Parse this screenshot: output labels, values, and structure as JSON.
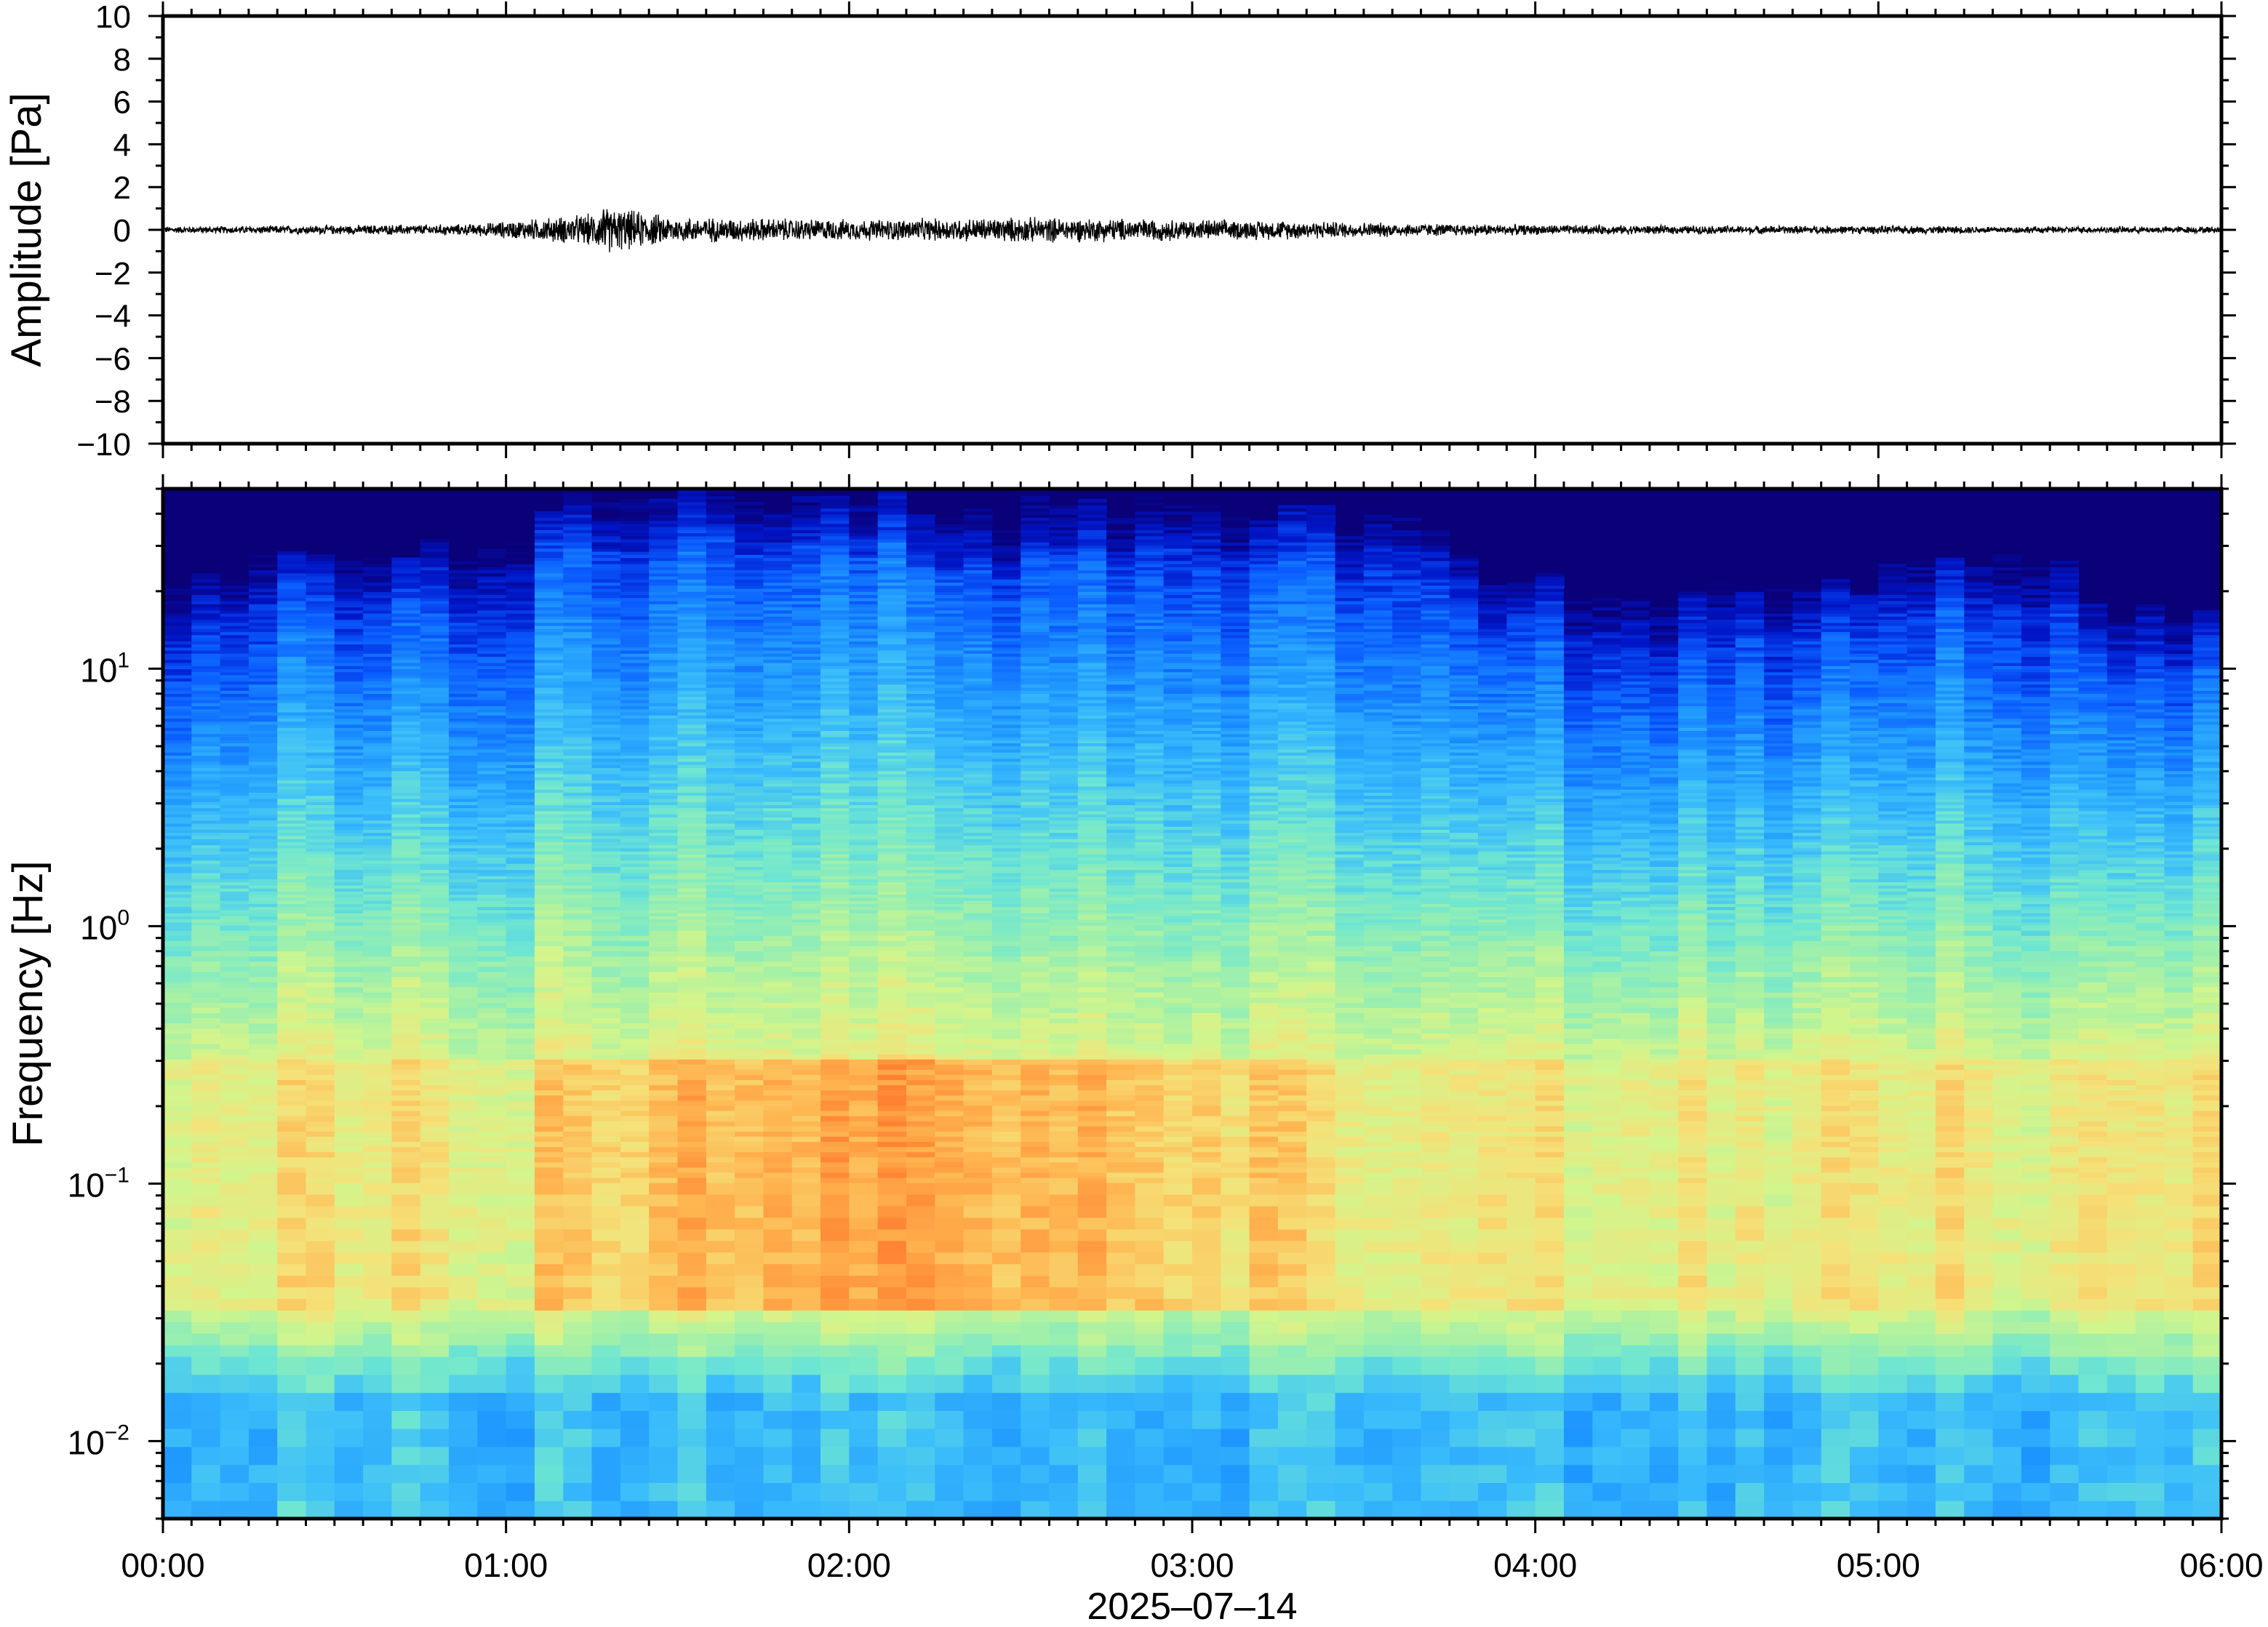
{
  "chart_data": [
    {
      "type": "line",
      "panel": "waveform",
      "ylabel": "Amplitude [Pa]",
      "xlabel": "2025–07–14",
      "ylim": [
        -10,
        10
      ],
      "xlim_hours": [
        0,
        6
      ],
      "x_ticks": [
        "00:00",
        "01:00",
        "02:00",
        "03:00",
        "04:00",
        "05:00",
        "06:00"
      ],
      "y_ticks": [
        "10",
        "8",
        "6",
        "4",
        "2",
        "0",
        "−2",
        "−4",
        "−6",
        "−8",
        "−10"
      ],
      "y_tick_values": [
        10,
        8,
        6,
        4,
        2,
        0,
        -2,
        -4,
        -6,
        -8,
        -10
      ],
      "line_color": "#000000",
      "envelope": {
        "x_hours": [
          0,
          0.5,
          0.9,
          1.1,
          1.25,
          1.3,
          1.5,
          1.8,
          2.0,
          2.3,
          2.5,
          2.8,
          3.0,
          3.3,
          3.6,
          4.0,
          4.5,
          5.0,
          5.5,
          6.0
        ],
        "amplitude": [
          0.15,
          0.2,
          0.25,
          0.5,
          0.7,
          1.0,
          0.55,
          0.5,
          0.45,
          0.5,
          0.55,
          0.5,
          0.45,
          0.4,
          0.3,
          0.22,
          0.18,
          0.18,
          0.15,
          0.15
        ]
      }
    },
    {
      "type": "heatmap",
      "panel": "spectrogram",
      "ylabel": "Frequency [Hz]",
      "xlabel": "2025–07–14",
      "y_scale": "log",
      "ylim_hz": [
        0.005,
        50
      ],
      "xlim_hours": [
        0,
        6
      ],
      "y_ticks": [
        {
          "value": 10,
          "base": "10",
          "exp": "1"
        },
        {
          "value": 1,
          "base": "10",
          "exp": "0"
        },
        {
          "value": 0.1,
          "base": "10",
          "exp": "−1"
        },
        {
          "value": 0.01,
          "base": "10",
          "exp": "−2"
        }
      ],
      "colormap": [
        "#0a0078",
        "#0016c8",
        "#0a5aff",
        "#1e96ff",
        "#3cbefa",
        "#6ee6d2",
        "#a0f0aa",
        "#d2f58c",
        "#f5e178",
        "#ffb450",
        "#ff8232"
      ],
      "cutoff_frequency_hz": {
        "x_hours": [
          0,
          0.5,
          1.0,
          1.12,
          1.5,
          2.0,
          2.25,
          2.5,
          3.0,
          3.5,
          3.75,
          3.85,
          4.2,
          4.6,
          5.0,
          5.5,
          5.7,
          6.0
        ],
        "freq_hz": [
          14,
          17,
          19,
          27,
          30,
          30,
          26,
          26,
          28,
          24,
          22,
          15,
          11,
          13,
          14,
          16,
          10,
          10
        ]
      },
      "peak_energy_band_hz": [
        0.03,
        0.3
      ],
      "peak_energy_hours": [
        1.1,
        3.3
      ]
    }
  ]
}
